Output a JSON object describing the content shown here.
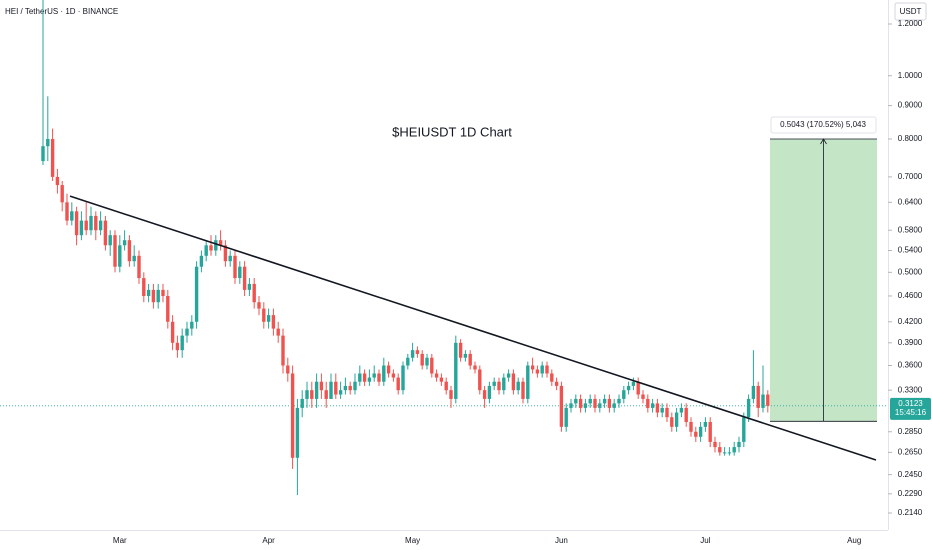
{
  "chart_data": {
    "type": "candlestick",
    "header": "HEI / TetherUS · 1D · BINANCE",
    "currency": "USDT",
    "title": "$HEIUSDT 1D Chart",
    "log_scale": true,
    "up_color": "#26a69a",
    "down_color": "#ef5350",
    "ylim": [
      0.203,
      1.306
    ],
    "yticks": [
      {
        "value": 1.2,
        "label": "1.2000"
      },
      {
        "value": 1.0,
        "label": "1.0000"
      },
      {
        "value": 0.9,
        "label": "0.9000"
      },
      {
        "value": 0.8,
        "label": "0.8000"
      },
      {
        "value": 0.7,
        "label": "0.7000"
      },
      {
        "value": 0.64,
        "label": "0.6400"
      },
      {
        "value": 0.58,
        "label": "0.5800"
      },
      {
        "value": 0.54,
        "label": "0.5400"
      },
      {
        "value": 0.5,
        "label": "0.5000"
      },
      {
        "value": 0.46,
        "label": "0.4600"
      },
      {
        "value": 0.42,
        "label": "0.4200"
      },
      {
        "value": 0.39,
        "label": "0.3900"
      },
      {
        "value": 0.36,
        "label": "0.3600"
      },
      {
        "value": 0.33,
        "label": "0.3300"
      },
      {
        "value": 0.285,
        "label": "0.2850"
      },
      {
        "value": 0.265,
        "label": "0.2650"
      },
      {
        "value": 0.245,
        "label": "0.2450"
      },
      {
        "value": 0.229,
        "label": "0.2290"
      },
      {
        "value": 0.214,
        "label": "0.2140"
      }
    ],
    "categories": [
      null,
      null,
      null,
      null,
      null,
      null,
      null,
      null,
      null,
      null,
      null,
      null,
      null,
      null,
      null,
      null,
      "Mar",
      null,
      null,
      null,
      null,
      null,
      null,
      null,
      null,
      null,
      null,
      null,
      null,
      null,
      null,
      null,
      null,
      null,
      null,
      null,
      null,
      null,
      null,
      null,
      null,
      null,
      null,
      null,
      null,
      null,
      null,
      "Apr",
      null,
      null,
      null,
      null,
      null,
      null,
      null,
      null,
      null,
      null,
      null,
      null,
      null,
      null,
      null,
      null,
      null,
      null,
      null,
      null,
      null,
      null,
      null,
      null,
      null,
      null,
      null,
      null,
      null,
      "May",
      null,
      null,
      null,
      null,
      null,
      null,
      null,
      null,
      null,
      null,
      null,
      null,
      null,
      null,
      null,
      null,
      null,
      null,
      null,
      null,
      null,
      null,
      null,
      null,
      null,
      null,
      null,
      null,
      null,
      null,
      "Jun",
      null,
      null,
      null,
      null,
      null,
      null,
      null,
      null,
      null,
      null,
      null,
      null,
      null,
      null,
      null,
      null,
      null,
      null,
      null,
      null,
      null,
      null,
      null,
      null,
      null,
      null,
      null,
      null,
      null,
      "Jul",
      null,
      null,
      null,
      null,
      null,
      null,
      null,
      null,
      null,
      null,
      null,
      null,
      null,
      null,
      null,
      null,
      null,
      null,
      null,
      null,
      null,
      null,
      null,
      null,
      null,
      null,
      null,
      null,
      null,
      null,
      "Aug",
      null,
      null,
      null,
      null,
      null,
      null,
      null
    ],
    "ohlc": [
      [
        0.74,
        1.31,
        0.73,
        0.78
      ],
      [
        0.78,
        0.93,
        0.74,
        0.8
      ],
      [
        0.8,
        0.83,
        0.69,
        0.7
      ],
      [
        0.7,
        0.72,
        0.66,
        0.68
      ],
      [
        0.68,
        0.69,
        0.62,
        0.64
      ],
      [
        0.64,
        0.66,
        0.59,
        0.6
      ],
      [
        0.6,
        0.64,
        0.59,
        0.62
      ],
      [
        0.62,
        0.63,
        0.55,
        0.57
      ],
      [
        0.57,
        0.62,
        0.56,
        0.6
      ],
      [
        0.6,
        0.64,
        0.57,
        0.58
      ],
      [
        0.58,
        0.63,
        0.57,
        0.61
      ],
      [
        0.61,
        0.62,
        0.56,
        0.58
      ],
      [
        0.58,
        0.62,
        0.57,
        0.6
      ],
      [
        0.6,
        0.61,
        0.54,
        0.55
      ],
      [
        0.55,
        0.58,
        0.53,
        0.57
      ],
      [
        0.57,
        0.58,
        0.5,
        0.51
      ],
      [
        0.51,
        0.57,
        0.5,
        0.55
      ],
      [
        0.55,
        0.58,
        0.54,
        0.56
      ],
      [
        0.56,
        0.57,
        0.51,
        0.52
      ],
      [
        0.52,
        0.55,
        0.51,
        0.53
      ],
      [
        0.53,
        0.54,
        0.48,
        0.49
      ],
      [
        0.49,
        0.5,
        0.45,
        0.46
      ],
      [
        0.46,
        0.48,
        0.45,
        0.47
      ],
      [
        0.47,
        0.48,
        0.44,
        0.45
      ],
      [
        0.45,
        0.48,
        0.44,
        0.47
      ],
      [
        0.47,
        0.48,
        0.45,
        0.46
      ],
      [
        0.46,
        0.47,
        0.41,
        0.42
      ],
      [
        0.42,
        0.43,
        0.38,
        0.39
      ],
      [
        0.39,
        0.4,
        0.37,
        0.38
      ],
      [
        0.38,
        0.41,
        0.37,
        0.4
      ],
      [
        0.4,
        0.42,
        0.39,
        0.41
      ],
      [
        0.41,
        0.43,
        0.4,
        0.42
      ],
      [
        0.42,
        0.52,
        0.41,
        0.51
      ],
      [
        0.51,
        0.54,
        0.5,
        0.53
      ],
      [
        0.53,
        0.56,
        0.52,
        0.55
      ],
      [
        0.55,
        0.57,
        0.53,
        0.54
      ],
      [
        0.54,
        0.57,
        0.53,
        0.56
      ],
      [
        0.56,
        0.58,
        0.54,
        0.55
      ],
      [
        0.55,
        0.56,
        0.51,
        0.52
      ],
      [
        0.52,
        0.54,
        0.51,
        0.53
      ],
      [
        0.53,
        0.54,
        0.48,
        0.49
      ],
      [
        0.49,
        0.52,
        0.48,
        0.51
      ],
      [
        0.51,
        0.52,
        0.46,
        0.47
      ],
      [
        0.47,
        0.49,
        0.46,
        0.48
      ],
      [
        0.48,
        0.49,
        0.44,
        0.45
      ],
      [
        0.45,
        0.46,
        0.43,
        0.44
      ],
      [
        0.44,
        0.45,
        0.41,
        0.42
      ],
      [
        0.42,
        0.44,
        0.41,
        0.43
      ],
      [
        0.43,
        0.44,
        0.4,
        0.41
      ],
      [
        0.41,
        0.42,
        0.39,
        0.4
      ],
      [
        0.4,
        0.41,
        0.35,
        0.36
      ],
      [
        0.36,
        0.37,
        0.34,
        0.35
      ],
      [
        0.35,
        0.36,
        0.25,
        0.26
      ],
      [
        0.26,
        0.32,
        0.228,
        0.31
      ],
      [
        0.31,
        0.33,
        0.3,
        0.32
      ],
      [
        0.32,
        0.34,
        0.31,
        0.33
      ],
      [
        0.33,
        0.34,
        0.31,
        0.32
      ],
      [
        0.32,
        0.35,
        0.31,
        0.34
      ],
      [
        0.34,
        0.35,
        0.32,
        0.33
      ],
      [
        0.33,
        0.34,
        0.31,
        0.32
      ],
      [
        0.32,
        0.35,
        0.32,
        0.34
      ],
      [
        0.34,
        0.35,
        0.32,
        0.325
      ],
      [
        0.325,
        0.34,
        0.32,
        0.33
      ],
      [
        0.33,
        0.345,
        0.325,
        0.335
      ],
      [
        0.335,
        0.34,
        0.325,
        0.33
      ],
      [
        0.33,
        0.35,
        0.325,
        0.34
      ],
      [
        0.34,
        0.36,
        0.335,
        0.35
      ],
      [
        0.35,
        0.355,
        0.335,
        0.34
      ],
      [
        0.34,
        0.355,
        0.335,
        0.345
      ],
      [
        0.345,
        0.36,
        0.34,
        0.35
      ],
      [
        0.35,
        0.355,
        0.335,
        0.34
      ],
      [
        0.34,
        0.37,
        0.335,
        0.36
      ],
      [
        0.36,
        0.365,
        0.345,
        0.35
      ],
      [
        0.35,
        0.355,
        0.34,
        0.345
      ],
      [
        0.345,
        0.35,
        0.325,
        0.33
      ],
      [
        0.33,
        0.365,
        0.325,
        0.36
      ],
      [
        0.36,
        0.375,
        0.355,
        0.37
      ],
      [
        0.37,
        0.39,
        0.365,
        0.38
      ],
      [
        0.38,
        0.385,
        0.37,
        0.375
      ],
      [
        0.375,
        0.38,
        0.355,
        0.36
      ],
      [
        0.36,
        0.375,
        0.355,
        0.37
      ],
      [
        0.37,
        0.375,
        0.345,
        0.35
      ],
      [
        0.35,
        0.355,
        0.34,
        0.345
      ],
      [
        0.345,
        0.35,
        0.335,
        0.34
      ],
      [
        0.34,
        0.345,
        0.325,
        0.33
      ],
      [
        0.33,
        0.335,
        0.31,
        0.32
      ],
      [
        0.32,
        0.4,
        0.315,
        0.39
      ],
      [
        0.39,
        0.395,
        0.365,
        0.37
      ],
      [
        0.37,
        0.38,
        0.365,
        0.375
      ],
      [
        0.375,
        0.38,
        0.355,
        0.36
      ],
      [
        0.36,
        0.365,
        0.35,
        0.355
      ],
      [
        0.355,
        0.36,
        0.325,
        0.33
      ],
      [
        0.33,
        0.335,
        0.31,
        0.32
      ],
      [
        0.32,
        0.34,
        0.315,
        0.335
      ],
      [
        0.335,
        0.345,
        0.33,
        0.34
      ],
      [
        0.34,
        0.345,
        0.325,
        0.33
      ],
      [
        0.33,
        0.35,
        0.325,
        0.345
      ],
      [
        0.345,
        0.355,
        0.34,
        0.35
      ],
      [
        0.35,
        0.355,
        0.325,
        0.33
      ],
      [
        0.33,
        0.345,
        0.325,
        0.34
      ],
      [
        0.34,
        0.345,
        0.315,
        0.32
      ],
      [
        0.32,
        0.365,
        0.315,
        0.36
      ],
      [
        0.36,
        0.37,
        0.35,
        0.355
      ],
      [
        0.355,
        0.36,
        0.345,
        0.35
      ],
      [
        0.35,
        0.365,
        0.345,
        0.36
      ],
      [
        0.36,
        0.365,
        0.345,
        0.35
      ],
      [
        0.35,
        0.355,
        0.335,
        0.34
      ],
      [
        0.34,
        0.345,
        0.33,
        0.335
      ],
      [
        0.335,
        0.34,
        0.285,
        0.29
      ],
      [
        0.29,
        0.315,
        0.285,
        0.31
      ],
      [
        0.31,
        0.32,
        0.305,
        0.315
      ],
      [
        0.315,
        0.325,
        0.31,
        0.32
      ],
      [
        0.32,
        0.325,
        0.305,
        0.31
      ],
      [
        0.31,
        0.32,
        0.305,
        0.315
      ],
      [
        0.315,
        0.325,
        0.31,
        0.32
      ],
      [
        0.32,
        0.325,
        0.305,
        0.31
      ],
      [
        0.31,
        0.32,
        0.305,
        0.315
      ],
      [
        0.315,
        0.325,
        0.31,
        0.32
      ],
      [
        0.32,
        0.325,
        0.305,
        0.31
      ],
      [
        0.31,
        0.32,
        0.305,
        0.315
      ],
      [
        0.315,
        0.325,
        0.31,
        0.32
      ],
      [
        0.32,
        0.335,
        0.315,
        0.33
      ],
      [
        0.33,
        0.34,
        0.325,
        0.335
      ],
      [
        0.335,
        0.345,
        0.33,
        0.34
      ],
      [
        0.34,
        0.345,
        0.32,
        0.325
      ],
      [
        0.325,
        0.33,
        0.315,
        0.32
      ],
      [
        0.32,
        0.325,
        0.305,
        0.31
      ],
      [
        0.31,
        0.32,
        0.305,
        0.315
      ],
      [
        0.315,
        0.32,
        0.3,
        0.305
      ],
      [
        0.305,
        0.315,
        0.3,
        0.31
      ],
      [
        0.31,
        0.315,
        0.295,
        0.3
      ],
      [
        0.3,
        0.305,
        0.285,
        0.29
      ],
      [
        0.29,
        0.31,
        0.285,
        0.305
      ],
      [
        0.305,
        0.315,
        0.3,
        0.31
      ],
      [
        0.31,
        0.315,
        0.29,
        0.295
      ],
      [
        0.295,
        0.3,
        0.28,
        0.285
      ],
      [
        0.285,
        0.29,
        0.275,
        0.28
      ],
      [
        0.28,
        0.295,
        0.275,
        0.29
      ],
      [
        0.29,
        0.3,
        0.285,
        0.295
      ],
      [
        0.295,
        0.3,
        0.27,
        0.275
      ],
      [
        0.275,
        0.28,
        0.265,
        0.27
      ],
      [
        0.27,
        0.275,
        0.262,
        0.265
      ],
      [
        0.265,
        0.27,
        0.262,
        0.265
      ],
      [
        0.265,
        0.27,
        0.262,
        0.265
      ],
      [
        0.265,
        0.275,
        0.262,
        0.27
      ],
      [
        0.27,
        0.28,
        0.265,
        0.275
      ],
      [
        0.275,
        0.305,
        0.27,
        0.3
      ],
      [
        0.3,
        0.325,
        0.295,
        0.32
      ],
      [
        0.32,
        0.38,
        0.315,
        0.335
      ],
      [
        0.335,
        0.34,
        0.3,
        0.31
      ],
      [
        0.31,
        0.36,
        0.305,
        0.325
      ],
      [
        0.325,
        0.33,
        0.305,
        0.3123
      ],
      null,
      null,
      null,
      null,
      null,
      null,
      null,
      null,
      null,
      null,
      null,
      null,
      null,
      null,
      null,
      null,
      null,
      null,
      null,
      null,
      null,
      null,
      null,
      null,
      null
    ],
    "trendline": {
      "start": 0.654,
      "end": 0.258
    },
    "measure": {
      "label": "0.5043 (170.52%) 5,043",
      "high": 0.8,
      "low": 0.2957,
      "color": "#4caf50"
    },
    "last_price": 0.3123,
    "countdown": "15:45:16"
  }
}
